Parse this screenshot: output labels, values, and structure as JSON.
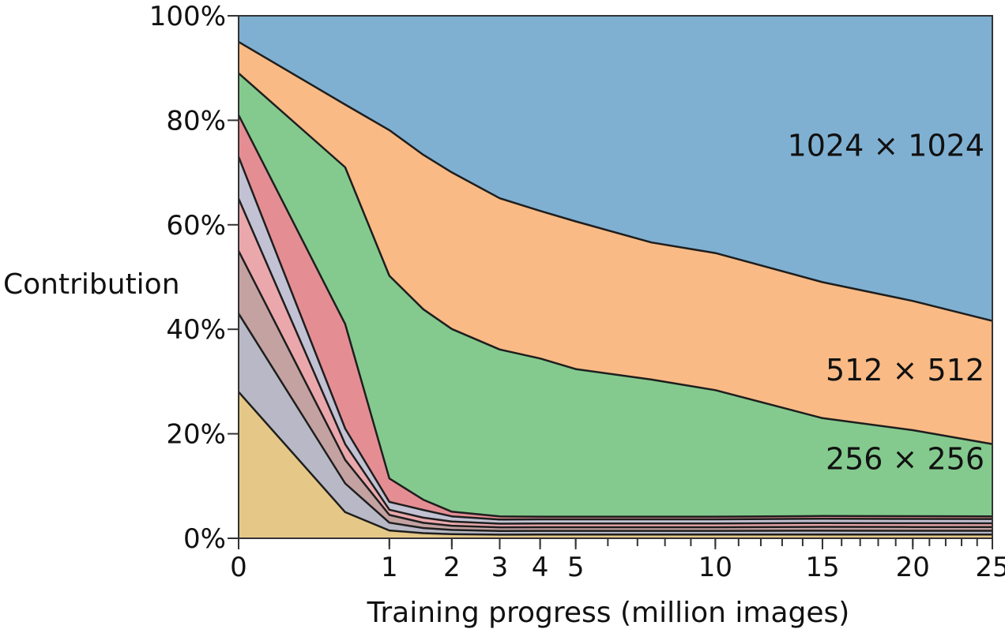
{
  "chart_data": {
    "type": "area",
    "stacked": true,
    "normalized": true,
    "xlabel": "Training progress (million images)",
    "ylabel": "Contribution",
    "x_scale": "sqrt",
    "xlim": [
      0,
      25
    ],
    "ylim": [
      0,
      100
    ],
    "y_ticks": [
      0,
      20,
      40,
      60,
      80,
      100
    ],
    "y_tick_labels": [
      "0%",
      "20%",
      "40%",
      "60%",
      "80%",
      "100%"
    ],
    "x_ticks": [
      0,
      1,
      2,
      3,
      4,
      5,
      10,
      15,
      20,
      25
    ],
    "x_tick_labels": [
      "0",
      "1",
      "2",
      "3",
      "4",
      "5",
      "10",
      "15",
      "20",
      "25"
    ],
    "x": [
      0,
      0.5,
      1,
      1.5,
      2,
      3,
      4,
      5,
      7.5,
      10,
      15,
      20,
      25
    ],
    "series": [
      {
        "name": "",
        "color": "#E5C888",
        "values": [
          28,
          5,
          1.5,
          1,
          0.8,
          0.7,
          0.7,
          0.7,
          0.7,
          0.7,
          0.7,
          0.7,
          0.7
        ]
      },
      {
        "name": "",
        "color": "#B8B8C6",
        "values": [
          15,
          5.5,
          1.5,
          1,
          0.8,
          0.7,
          0.7,
          0.7,
          0.7,
          0.7,
          0.7,
          0.7,
          0.7
        ]
      },
      {
        "name": "",
        "color": "#C4A2A2",
        "values": [
          12,
          4.5,
          1.5,
          1,
          0.8,
          0.7,
          0.7,
          0.7,
          0.7,
          0.7,
          0.7,
          0.7,
          0.7
        ]
      },
      {
        "name": "",
        "color": "#EBA8AC",
        "values": [
          10,
          3,
          1,
          1,
          0.8,
          0.7,
          0.7,
          0.7,
          0.7,
          0.7,
          0.7,
          0.7,
          0.7
        ]
      },
      {
        "name": "",
        "color": "#C2C2D4",
        "values": [
          8,
          3,
          1.5,
          1.5,
          1,
          0.8,
          0.8,
          0.8,
          0.8,
          0.8,
          0.8,
          0.8,
          0.8
        ]
      },
      {
        "name": "",
        "color": "#E48E94",
        "values": [
          8,
          20,
          4.5,
          2,
          0.9,
          0.6,
          0.5,
          0.5,
          0.5,
          0.5,
          0.5,
          0.5,
          0.5
        ]
      },
      {
        "name": "256 × 256",
        "color": "#84CA8E",
        "values": [
          8,
          30,
          39,
          37,
          35,
          32,
          30,
          28,
          26,
          24,
          18,
          16,
          13.5
        ]
      },
      {
        "name": "512 × 512",
        "color": "#F9BA85",
        "values": [
          6,
          12,
          28,
          30,
          30,
          29,
          28,
          28,
          26,
          26,
          25,
          24,
          23
        ]
      },
      {
        "name": "1024 × 1024",
        "color": "#7FB0D2",
        "values": [
          5,
          17,
          22,
          27,
          30,
          35,
          37,
          39,
          43,
          45,
          49,
          53,
          57
        ]
      }
    ]
  }
}
